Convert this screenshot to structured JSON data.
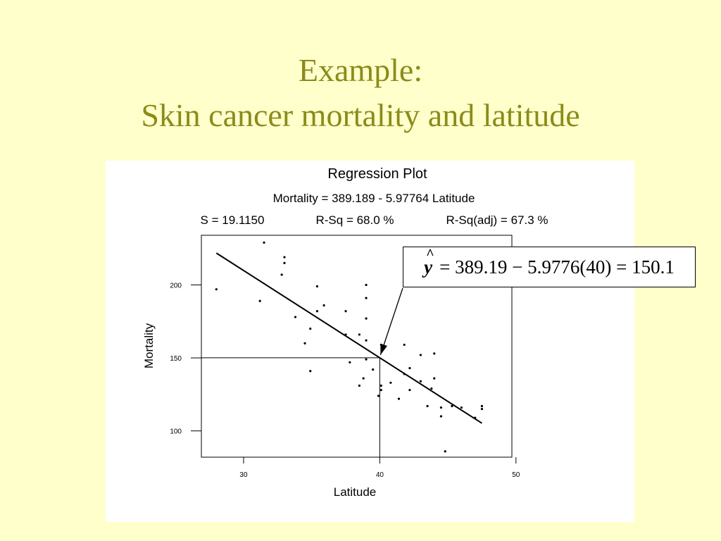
{
  "slide": {
    "title_line1": "Example:",
    "title_line2": "Skin cancer mortality and latitude",
    "title_color": "#8b8b1a",
    "background": "#ffffcc"
  },
  "annotation": {
    "yhat_symbol": "y",
    "hat": "^",
    "equation": "= 389.19 − 5.9776(40) = 150.1"
  },
  "chart_data": {
    "type": "scatter",
    "title": "Regression Plot",
    "subtitle": "Mortality = 389.189 - 5.97764 Latitude",
    "stats": {
      "s": "S = 19.1150",
      "rsq": "R-Sq = 68.0 %",
      "rsq_adj": "R-Sq(adj) = 67.3 %"
    },
    "xlabel": "Latitude",
    "ylabel": "Mortality",
    "xlim": [
      26.9,
      49.7
    ],
    "ylim": [
      82,
      234
    ],
    "x_ticks": [
      30,
      40,
      50
    ],
    "y_ticks": [
      100,
      150,
      200
    ],
    "grid": false,
    "fit_line": {
      "intercept": 389.189,
      "slope": -5.97764,
      "x_range": [
        28,
        47.5
      ]
    },
    "prediction": {
      "x": 40,
      "y": 150.1
    },
    "points": [
      {
        "x": 28.0,
        "y": 197
      },
      {
        "x": 31.2,
        "y": 189
      },
      {
        "x": 31.5,
        "y": 229
      },
      {
        "x": 32.8,
        "y": 207
      },
      {
        "x": 33.0,
        "y": 219
      },
      {
        "x": 33.0,
        "y": 215
      },
      {
        "x": 33.8,
        "y": 178
      },
      {
        "x": 34.5,
        "y": 160
      },
      {
        "x": 34.9,
        "y": 170
      },
      {
        "x": 34.9,
        "y": 141
      },
      {
        "x": 35.4,
        "y": 182
      },
      {
        "x": 35.4,
        "y": 199
      },
      {
        "x": 35.9,
        "y": 186
      },
      {
        "x": 37.5,
        "y": 182
      },
      {
        "x": 37.5,
        "y": 166
      },
      {
        "x": 37.8,
        "y": 147
      },
      {
        "x": 38.5,
        "y": 166
      },
      {
        "x": 38.5,
        "y": 131
      },
      {
        "x": 38.8,
        "y": 136
      },
      {
        "x": 39.0,
        "y": 200
      },
      {
        "x": 39.0,
        "y": 191
      },
      {
        "x": 39.0,
        "y": 177
      },
      {
        "x": 39.0,
        "y": 162
      },
      {
        "x": 39.0,
        "y": 149
      },
      {
        "x": 39.5,
        "y": 142
      },
      {
        "x": 39.9,
        "y": 124
      },
      {
        "x": 40.1,
        "y": 131
      },
      {
        "x": 40.1,
        "y": 128
      },
      {
        "x": 40.1,
        "y": 159
      },
      {
        "x": 40.8,
        "y": 133
      },
      {
        "x": 41.4,
        "y": 122
      },
      {
        "x": 41.8,
        "y": 159
      },
      {
        "x": 41.8,
        "y": 139
      },
      {
        "x": 42.2,
        "y": 128
      },
      {
        "x": 42.2,
        "y": 143
      },
      {
        "x": 43.0,
        "y": 134
      },
      {
        "x": 43.0,
        "y": 152
      },
      {
        "x": 43.5,
        "y": 117
      },
      {
        "x": 43.8,
        "y": 129
      },
      {
        "x": 44.0,
        "y": 136
      },
      {
        "x": 44.0,
        "y": 153
      },
      {
        "x": 44.5,
        "y": 116
      },
      {
        "x": 44.5,
        "y": 110
      },
      {
        "x": 44.8,
        "y": 86
      },
      {
        "x": 45.3,
        "y": 117
      },
      {
        "x": 46.0,
        "y": 116
      },
      {
        "x": 47.0,
        "y": 109
      },
      {
        "x": 47.5,
        "y": 117
      },
      {
        "x": 47.5,
        "y": 115
      }
    ]
  }
}
